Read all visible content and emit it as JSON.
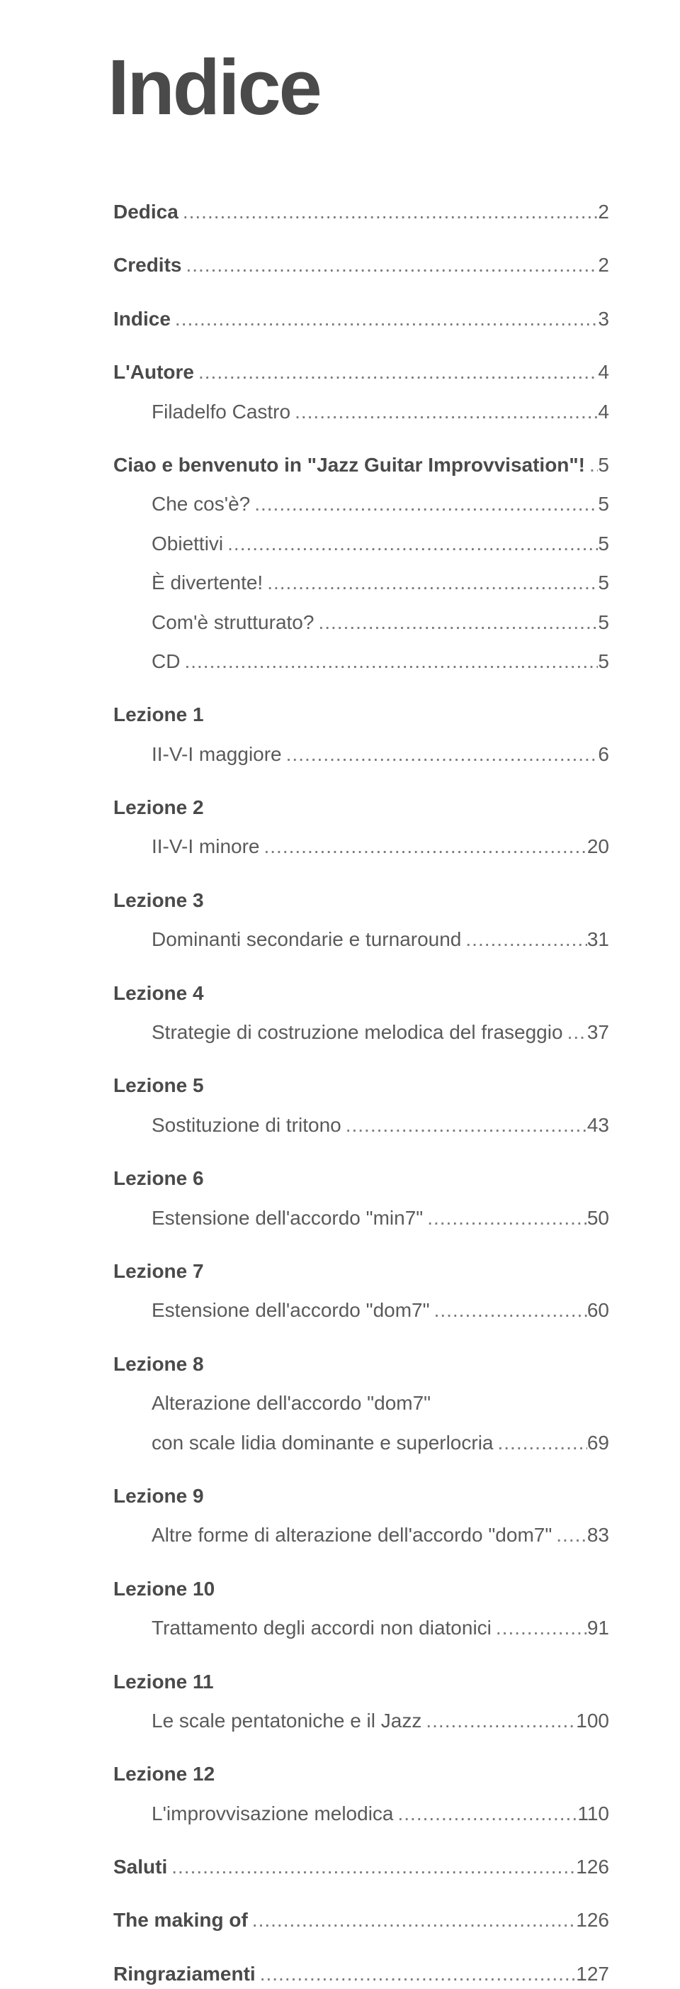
{
  "title": "Indice",
  "entries": [
    {
      "label": "Dedica",
      "page": "2",
      "bold": true,
      "sub": false,
      "gap_after": true
    },
    {
      "label": "Credits",
      "page": "2",
      "bold": true,
      "sub": false,
      "gap_after": true
    },
    {
      "label": "Indice",
      "page": "3",
      "bold": true,
      "sub": false,
      "gap_after": true
    },
    {
      "label": "L'Autore",
      "page": "4",
      "bold": true,
      "sub": false
    },
    {
      "label": "Filadelfo Castro",
      "page": "4",
      "bold": false,
      "sub": true,
      "gap_after": true
    },
    {
      "label": "Ciao e benvenuto in \"Jazz Guitar Improvvisation\"!",
      "page": "5",
      "bold": true,
      "sub": false
    },
    {
      "label": "Che cos'è?",
      "page": "5",
      "bold": false,
      "sub": true
    },
    {
      "label": "Obiettivi",
      "page": "5",
      "bold": false,
      "sub": true
    },
    {
      "label": "È divertente!",
      "page": "5",
      "bold": false,
      "sub": true
    },
    {
      "label": "Com'è strutturato?",
      "page": "5",
      "bold": false,
      "sub": true
    },
    {
      "label": "CD",
      "page": "5",
      "bold": false,
      "sub": true,
      "gap_after": true
    },
    {
      "label": "Lezione 1",
      "page": "",
      "bold": true,
      "sub": false,
      "nopage": true
    },
    {
      "label": "II-V-I maggiore",
      "page": "6",
      "bold": false,
      "sub": true,
      "gap_after": true
    },
    {
      "label": "Lezione 2",
      "page": "",
      "bold": true,
      "sub": false,
      "nopage": true
    },
    {
      "label": "II-V-I minore",
      "page": "20",
      "bold": false,
      "sub": true,
      "gap_after": true
    },
    {
      "label": "Lezione 3",
      "page": "",
      "bold": true,
      "sub": false,
      "nopage": true
    },
    {
      "label": "Dominanti secondarie e turnaround",
      "page": "31",
      "bold": false,
      "sub": true,
      "gap_after": true
    },
    {
      "label": "Lezione 4",
      "page": "",
      "bold": true,
      "sub": false,
      "nopage": true
    },
    {
      "label": "Strategie di costruzione melodica del fraseggio",
      "page": "37",
      "bold": false,
      "sub": true,
      "gap_after": true
    },
    {
      "label": "Lezione 5",
      "page": "",
      "bold": true,
      "sub": false,
      "nopage": true
    },
    {
      "label": "Sostituzione di tritono",
      "page": "43",
      "bold": false,
      "sub": true,
      "gap_after": true
    },
    {
      "label": "Lezione 6",
      "page": "",
      "bold": true,
      "sub": false,
      "nopage": true
    },
    {
      "label": "Estensione dell'accordo \"min7\"",
      "page": "50",
      "bold": false,
      "sub": true,
      "gap_after": true
    },
    {
      "label": "Lezione 7",
      "page": "",
      "bold": true,
      "sub": false,
      "nopage": true
    },
    {
      "label": "Estensione dell'accordo \"dom7\"",
      "page": "60",
      "bold": false,
      "sub": true,
      "gap_after": true
    },
    {
      "label": "Lezione 8",
      "page": "",
      "bold": true,
      "sub": false,
      "nopage": true
    },
    {
      "label": "Alterazione dell'accordo \"dom7\"",
      "page": "",
      "bold": false,
      "sub": true,
      "nopage": true
    },
    {
      "label": "con scale lidia dominante e superlocria",
      "page": "69",
      "bold": false,
      "sub": true,
      "gap_after": true
    },
    {
      "label": "Lezione 9",
      "page": "",
      "bold": true,
      "sub": false,
      "nopage": true
    },
    {
      "label": "Altre forme di alterazione dell'accordo \"dom7\"",
      "page": "83",
      "bold": false,
      "sub": true,
      "gap_after": true
    },
    {
      "label": "Lezione 10",
      "page": "",
      "bold": true,
      "sub": false,
      "nopage": true
    },
    {
      "label": "Trattamento degli accordi non diatonici",
      "page": "91",
      "bold": false,
      "sub": true,
      "gap_after": true
    },
    {
      "label": "Lezione 11",
      "page": "",
      "bold": true,
      "sub": false,
      "nopage": true
    },
    {
      "label": "Le scale pentatoniche e il Jazz",
      "page": "100",
      "bold": false,
      "sub": true,
      "gap_after": true
    },
    {
      "label": "Lezione 12",
      "page": "",
      "bold": true,
      "sub": false,
      "nopage": true
    },
    {
      "label": "L'improvvisazione melodica",
      "page": "110",
      "bold": false,
      "sub": true,
      "gap_after": true
    },
    {
      "label": "Saluti",
      "page": "126",
      "bold": true,
      "sub": false,
      "gap_after": true
    },
    {
      "label": "The making of",
      "page": "126",
      "bold": true,
      "sub": false,
      "gap_after": true
    },
    {
      "label": "Ringraziamenti",
      "page": "127",
      "bold": true,
      "sub": false
    }
  ]
}
